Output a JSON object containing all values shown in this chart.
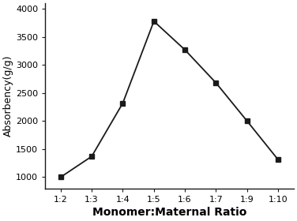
{
  "x_labels": [
    "1:2",
    "1:3",
    "1:4",
    "1:5",
    "1:6",
    "1:7",
    "1:9",
    "1:10"
  ],
  "x_positions": [
    0,
    1,
    2,
    3,
    4,
    5,
    6,
    7
  ],
  "y_values": [
    1000,
    1370,
    2320,
    3780,
    3270,
    2680,
    2000,
    1310
  ],
  "xlabel": "Monomer:Maternal Ratio",
  "ylabel": "Absorbency(g/g)",
  "ylim": [
    800,
    4100
  ],
  "yticks": [
    1000,
    1500,
    2000,
    2500,
    3000,
    3500,
    4000
  ],
  "line_color": "#1a1a1a",
  "marker": "s",
  "marker_size": 5,
  "marker_facecolor": "#1a1a1a",
  "linewidth": 1.3,
  "xlabel_fontsize": 10,
  "xlabel_fontweight": "bold",
  "ylabel_fontsize": 9,
  "tick_fontsize": 8,
  "background_color": "#ffffff"
}
